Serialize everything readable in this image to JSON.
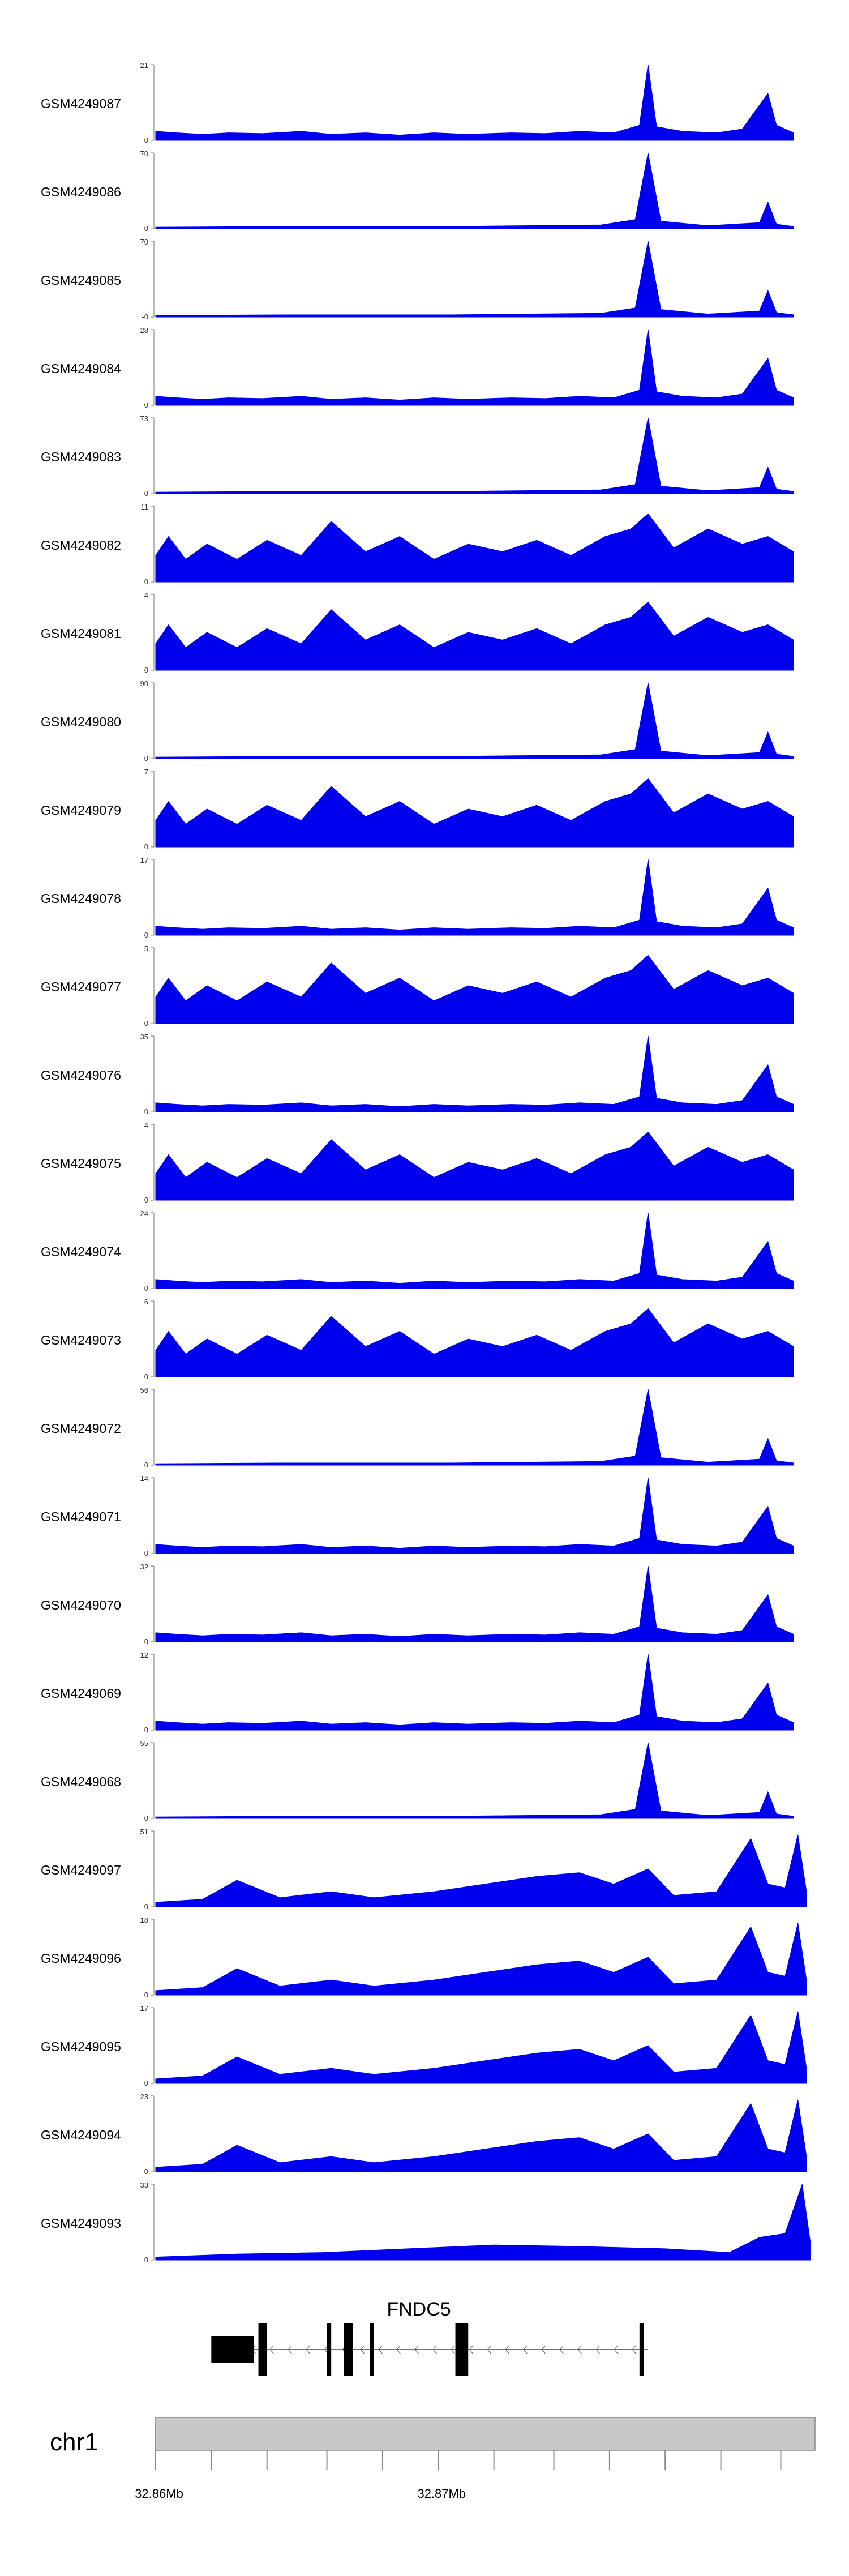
{
  "chart_data": {
    "type": "area",
    "title": "",
    "xlabel": "",
    "ylabel": "",
    "color": "#0000ee",
    "tracks": [
      {
        "label": "GSM4249087",
        "ymax": 21,
        "ymin": "0",
        "series": "A"
      },
      {
        "label": "GSM4249086",
        "ymax": 70,
        "ymin": "0",
        "series": "B"
      },
      {
        "label": "GSM4249085",
        "ymax": 70,
        "ymin": "-0",
        "series": "B"
      },
      {
        "label": "GSM4249084",
        "ymax": 28,
        "ymin": "0",
        "series": "A"
      },
      {
        "label": "GSM4249083",
        "ymax": 73,
        "ymin": "0",
        "series": "B"
      },
      {
        "label": "GSM4249082",
        "ymax": 11,
        "ymin": "0",
        "series": "N"
      },
      {
        "label": "GSM4249081",
        "ymax": 4,
        "ymin": "0",
        "series": "N"
      },
      {
        "label": "GSM4249080",
        "ymax": 90,
        "ymin": "0",
        "series": "B"
      },
      {
        "label": "GSM4249079",
        "ymax": 7,
        "ymin": "0",
        "series": "N"
      },
      {
        "label": "GSM4249078",
        "ymax": 17,
        "ymin": "0",
        "series": "A"
      },
      {
        "label": "GSM4249077",
        "ymax": 5,
        "ymin": "0",
        "series": "N"
      },
      {
        "label": "GSM4249076",
        "ymax": 35,
        "ymin": "0",
        "series": "A"
      },
      {
        "label": "GSM4249075",
        "ymax": 4,
        "ymin": "0",
        "series": "N"
      },
      {
        "label": "GSM4249074",
        "ymax": 24,
        "ymin": "0",
        "series": "A"
      },
      {
        "label": "GSM4249073",
        "ymax": 6,
        "ymin": "0",
        "series": "N"
      },
      {
        "label": "GSM4249072",
        "ymax": 56,
        "ymin": "0",
        "series": "B"
      },
      {
        "label": "GSM4249071",
        "ymax": 14,
        "ymin": "0",
        "series": "A"
      },
      {
        "label": "GSM4249070",
        "ymax": 32,
        "ymin": "0",
        "series": "A"
      },
      {
        "label": "GSM4249069",
        "ymax": 12,
        "ymin": "0",
        "series": "A"
      },
      {
        "label": "GSM4249068",
        "ymax": 55,
        "ymin": "0",
        "series": "B"
      },
      {
        "label": "GSM4249097",
        "ymax": 51,
        "ymin": "0",
        "series": "C"
      },
      {
        "label": "GSM4249096",
        "ymax": 18,
        "ymin": "0",
        "series": "C"
      },
      {
        "label": "GSM4249095",
        "ymax": 17,
        "ymin": "0",
        "series": "C"
      },
      {
        "label": "GSM4249094",
        "ymax": 23,
        "ymin": "0",
        "series": "C"
      },
      {
        "label": "GSM4249093",
        "ymax": 33,
        "ymin": "0",
        "series": "D"
      }
    ],
    "series": {
      "A": [
        {
          "x": 32.8611,
          "y": 0.12
        },
        {
          "x": 32.8616,
          "y": 0.1
        },
        {
          "x": 32.8622,
          "y": 0.08
        },
        {
          "x": 32.8628,
          "y": 0.1
        },
        {
          "x": 32.8636,
          "y": 0.09
        },
        {
          "x": 32.8645,
          "y": 0.12
        },
        {
          "x": 32.8652,
          "y": 0.08
        },
        {
          "x": 32.866,
          "y": 0.1
        },
        {
          "x": 32.8668,
          "y": 0.07
        },
        {
          "x": 32.8676,
          "y": 0.1
        },
        {
          "x": 32.8684,
          "y": 0.08
        },
        {
          "x": 32.8694,
          "y": 0.1
        },
        {
          "x": 32.8702,
          "y": 0.09
        },
        {
          "x": 32.871,
          "y": 0.12
        },
        {
          "x": 32.8718,
          "y": 0.1
        },
        {
          "x": 32.8724,
          "y": 0.2
        },
        {
          "x": 32.8726,
          "y": 1.0
        },
        {
          "x": 32.8728,
          "y": 0.18
        },
        {
          "x": 32.8734,
          "y": 0.12
        },
        {
          "x": 32.8742,
          "y": 0.1
        },
        {
          "x": 32.8748,
          "y": 0.15
        },
        {
          "x": 32.8754,
          "y": 0.62
        },
        {
          "x": 32.8756,
          "y": 0.2
        },
        {
          "x": 32.876,
          "y": 0.1
        }
      ],
      "B": [
        {
          "x": 32.8611,
          "y": 0.02
        },
        {
          "x": 32.864,
          "y": 0.03
        },
        {
          "x": 32.868,
          "y": 0.03
        },
        {
          "x": 32.8715,
          "y": 0.05
        },
        {
          "x": 32.8723,
          "y": 0.12
        },
        {
          "x": 32.8726,
          "y": 1.0
        },
        {
          "x": 32.8729,
          "y": 0.1
        },
        {
          "x": 32.874,
          "y": 0.04
        },
        {
          "x": 32.8752,
          "y": 0.08
        },
        {
          "x": 32.8754,
          "y": 0.35
        },
        {
          "x": 32.8756,
          "y": 0.06
        },
        {
          "x": 32.876,
          "y": 0.03
        }
      ],
      "N": [
        {
          "x": 32.8611,
          "y": 0.35
        },
        {
          "x": 32.8614,
          "y": 0.6
        },
        {
          "x": 32.8618,
          "y": 0.3
        },
        {
          "x": 32.8623,
          "y": 0.5
        },
        {
          "x": 32.863,
          "y": 0.3
        },
        {
          "x": 32.8637,
          "y": 0.55
        },
        {
          "x": 32.8645,
          "y": 0.35
        },
        {
          "x": 32.8652,
          "y": 0.8
        },
        {
          "x": 32.866,
          "y": 0.4
        },
        {
          "x": 32.8668,
          "y": 0.6
        },
        {
          "x": 32.8676,
          "y": 0.3
        },
        {
          "x": 32.8684,
          "y": 0.5
        },
        {
          "x": 32.8692,
          "y": 0.4
        },
        {
          "x": 32.87,
          "y": 0.55
        },
        {
          "x": 32.8708,
          "y": 0.35
        },
        {
          "x": 32.8716,
          "y": 0.6
        },
        {
          "x": 32.8722,
          "y": 0.7
        },
        {
          "x": 32.8726,
          "y": 0.9
        },
        {
          "x": 32.8732,
          "y": 0.45
        },
        {
          "x": 32.874,
          "y": 0.7
        },
        {
          "x": 32.8748,
          "y": 0.5
        },
        {
          "x": 32.8754,
          "y": 0.6
        },
        {
          "x": 32.876,
          "y": 0.4
        }
      ],
      "C": [
        {
          "x": 32.8611,
          "y": 0.06
        },
        {
          "x": 32.8622,
          "y": 0.1
        },
        {
          "x": 32.863,
          "y": 0.35
        },
        {
          "x": 32.864,
          "y": 0.12
        },
        {
          "x": 32.8652,
          "y": 0.2
        },
        {
          "x": 32.8662,
          "y": 0.12
        },
        {
          "x": 32.8676,
          "y": 0.2
        },
        {
          "x": 32.8688,
          "y": 0.3
        },
        {
          "x": 32.87,
          "y": 0.4
        },
        {
          "x": 32.871,
          "y": 0.45
        },
        {
          "x": 32.8718,
          "y": 0.3
        },
        {
          "x": 32.8726,
          "y": 0.5
        },
        {
          "x": 32.8732,
          "y": 0.15
        },
        {
          "x": 32.8742,
          "y": 0.2
        },
        {
          "x": 32.875,
          "y": 0.9
        },
        {
          "x": 32.8754,
          "y": 0.3
        },
        {
          "x": 32.8758,
          "y": 0.25
        },
        {
          "x": 32.8761,
          "y": 0.95
        },
        {
          "x": 32.8763,
          "y": 0.2
        }
      ],
      "D": [
        {
          "x": 32.8611,
          "y": 0.04
        },
        {
          "x": 32.863,
          "y": 0.08
        },
        {
          "x": 32.865,
          "y": 0.1
        },
        {
          "x": 32.867,
          "y": 0.15
        },
        {
          "x": 32.869,
          "y": 0.2
        },
        {
          "x": 32.871,
          "y": 0.18
        },
        {
          "x": 32.873,
          "y": 0.15
        },
        {
          "x": 32.8745,
          "y": 0.1
        },
        {
          "x": 32.8752,
          "y": 0.3
        },
        {
          "x": 32.8758,
          "y": 0.35
        },
        {
          "x": 32.8762,
          "y": 1.0
        },
        {
          "x": 32.8764,
          "y": 0.2
        }
      ]
    },
    "gene": {
      "name": "FNDC5",
      "strand": "-",
      "start": 32.8624,
      "end": 32.8726,
      "utr": [
        {
          "start": 32.8624,
          "end": 32.8634
        }
      ],
      "exons": [
        {
          "start": 32.8635,
          "end": 32.8637
        },
        {
          "start": 32.8651,
          "end": 32.8652
        },
        {
          "start": 32.8655,
          "end": 32.8657
        },
        {
          "start": 32.8661,
          "end": 32.8662
        },
        {
          "start": 32.8681,
          "end": 32.8684
        },
        {
          "start": 32.8724,
          "end": 32.8725
        }
      ]
    },
    "axis": {
      "chromosome": "chr1",
      "xlim": [
        32.8611,
        32.8765
      ],
      "ticks": [
        {
          "x": 32.8611,
          "label": "32.86Mb"
        },
        {
          "x": 32.8624,
          "label": ""
        },
        {
          "x": 32.8637,
          "label": ""
        },
        {
          "x": 32.8651,
          "label": ""
        },
        {
          "x": 32.8664,
          "label": ""
        },
        {
          "x": 32.8677,
          "label": "32.87Mb"
        },
        {
          "x": 32.869,
          "label": ""
        },
        {
          "x": 32.8704,
          "label": ""
        },
        {
          "x": 32.8717,
          "label": ""
        },
        {
          "x": 32.873,
          "label": ""
        },
        {
          "x": 32.8743,
          "label": ""
        },
        {
          "x": 32.8757,
          "label": ""
        }
      ]
    }
  }
}
